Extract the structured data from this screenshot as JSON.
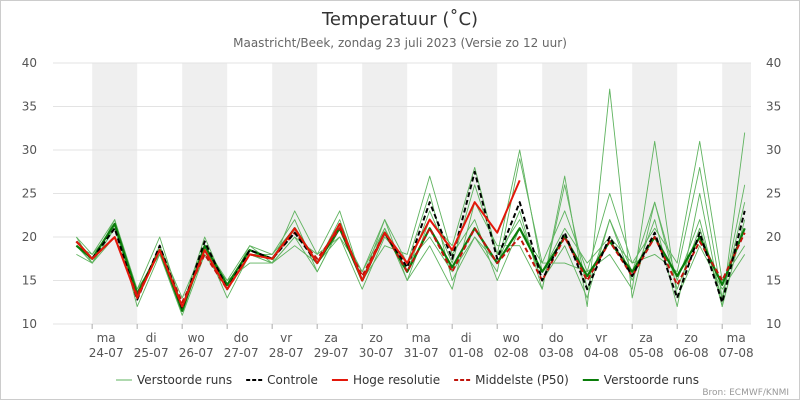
{
  "chart_data": {
    "type": "line",
    "title": "Temperatuur (˚C)",
    "subtitle": "Maastricht/Beek, zondag 23 juli 2023 (Versie zo 12 uur)",
    "source": "Bron: ECMWF/KNMI",
    "x": [
      -0.35,
      0,
      0.5,
      1,
      1.5,
      2,
      2.5,
      3,
      3.5,
      4,
      4.5,
      5,
      5.5,
      6,
      6.5,
      7,
      7.5,
      8,
      8.5,
      9,
      9.5,
      10,
      10.5,
      11,
      11.5,
      12,
      12.5,
      13,
      13.5,
      14,
      14.5
    ],
    "xlim": [
      -0.87,
      14.64
    ],
    "xticks": [
      {
        "value": 0,
        "label": "ma\n24-07"
      },
      {
        "value": 1,
        "label": "di\n25-07"
      },
      {
        "value": 2,
        "label": "wo\n26-07"
      },
      {
        "value": 3,
        "label": "do\n27-07"
      },
      {
        "value": 4,
        "label": "vr\n28-07"
      },
      {
        "value": 5,
        "label": "za\n29-07"
      },
      {
        "value": 6,
        "label": "zo\n30-07"
      },
      {
        "value": 7,
        "label": "ma\n31-07"
      },
      {
        "value": 8,
        "label": "di\n01-08"
      },
      {
        "value": 9,
        "label": "wo\n02-08"
      },
      {
        "value": 10,
        "label": "do\n03-08"
      },
      {
        "value": 11,
        "label": "vr\n04-08"
      },
      {
        "value": 12,
        "label": "za\n05-08"
      },
      {
        "value": 13,
        "label": "zo\n06-08"
      },
      {
        "value": 14,
        "label": "ma\n07-08"
      }
    ],
    "ylim": [
      10,
      40
    ],
    "yticks": [
      10,
      15,
      20,
      25,
      30,
      35,
      40
    ],
    "grid": true,
    "ensemble": {
      "name": "Verstoorde runs",
      "color": "#5fb35f",
      "runs": [
        [
          20,
          18,
          21,
          13,
          19,
          12,
          19,
          14,
          18,
          18,
          21,
          17,
          22,
          15,
          21,
          16,
          23,
          17,
          26,
          18,
          22,
          15,
          19,
          13,
          22,
          16,
          24,
          14,
          21,
          13,
          24
        ],
        [
          19,
          17,
          22,
          12,
          18,
          11,
          18,
          15,
          19,
          17,
          20,
          18,
          20,
          14,
          20,
          17,
          20,
          16,
          20,
          16,
          29,
          17,
          23,
          16,
          25,
          17,
          21,
          17,
          31,
          15,
          19
        ],
        [
          18,
          17,
          21,
          14,
          20,
          12,
          20,
          14,
          19,
          18,
          22,
          16,
          21,
          16,
          22,
          15,
          19,
          14,
          24,
          19,
          19,
          14,
          27,
          12,
          37,
          13,
          24,
          15,
          22,
          12,
          32
        ],
        [
          20,
          17,
          20,
          13,
          19,
          13,
          19,
          13,
          18,
          17,
          23,
          18,
          23,
          15,
          19,
          18,
          27,
          18,
          22,
          15,
          21,
          17,
          17,
          16,
          18,
          14,
          31,
          13,
          19,
          14,
          18
        ],
        [
          19,
          18,
          22,
          14,
          18,
          12,
          19,
          15,
          17,
          17,
          19,
          17,
          20,
          16,
          21,
          15,
          22,
          19,
          28,
          18,
          30,
          16,
          21,
          17,
          20,
          17,
          18,
          16,
          28,
          13,
          26
        ],
        [
          19,
          17,
          21,
          13,
          19,
          12,
          18,
          14,
          18,
          17,
          20,
          16,
          21,
          15,
          22,
          17,
          25,
          15,
          20,
          17,
          23,
          14,
          26,
          14,
          22,
          15,
          22,
          12,
          25,
          12,
          22
        ]
      ]
    },
    "series": [
      {
        "name": "Controle",
        "color": "#000000",
        "dash": true,
        "values": [
          19.5,
          17.5,
          21,
          12.8,
          19,
          11.8,
          19.5,
          14,
          18.5,
          17.5,
          20.5,
          17,
          21.5,
          15,
          20.5,
          16.5,
          24,
          17.5,
          27.5,
          17.5,
          24,
          15,
          20.5,
          14,
          20,
          15.5,
          20.5,
          13,
          20.5,
          12.5,
          23
        ]
      },
      {
        "name": "Hoge resolutie",
        "color": "#e3170a",
        "dash": false,
        "values": [
          19.5,
          17.5,
          20,
          13,
          18.5,
          12,
          18.5,
          14,
          18,
          17.5,
          21,
          17,
          21.5,
          15,
          20.5,
          17,
          22,
          18.5,
          24,
          20.5,
          26.5,
          null,
          null,
          null,
          null,
          null,
          null,
          null,
          null,
          null,
          null
        ]
      },
      {
        "name": "Middelste (P50)",
        "color": "#c0150c",
        "dash": true,
        "values": [
          19.5,
          17.5,
          20,
          13.3,
          18.5,
          12.5,
          18,
          14,
          18,
          17.5,
          20.5,
          17.5,
          21,
          15.5,
          20.5,
          16,
          21,
          16,
          21,
          17,
          20,
          15,
          20,
          15,
          19.5,
          15.5,
          20,
          14.5,
          19.5,
          15,
          20.5
        ]
      },
      {
        "name": "Verstoorde runs",
        "color": "#0a7d0a",
        "dash": false,
        "values": [
          19,
          17.5,
          21.5,
          13.5,
          18.5,
          11.5,
          19,
          14.5,
          18.5,
          17.5,
          21,
          17,
          21,
          15,
          20.5,
          16,
          21,
          16.5,
          21,
          17,
          21,
          16,
          20,
          15.5,
          19.5,
          16,
          20,
          15.5,
          20,
          14.5,
          21
        ]
      }
    ]
  }
}
